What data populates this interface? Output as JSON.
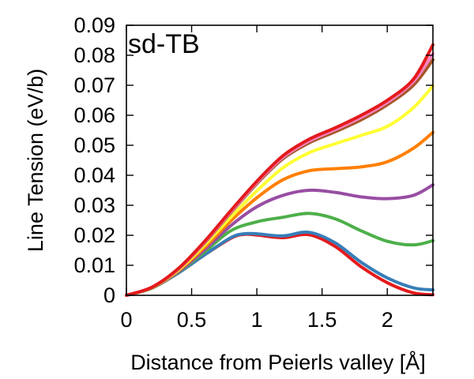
{
  "chart_data": {
    "type": "line",
    "title": "sd-TB",
    "xlabel": "Distance from Peierls valley [Å]",
    "ylabel": "Line Tension (eV/b)",
    "xlim": [
      0,
      2.35
    ],
    "ylim": [
      0,
      0.09
    ],
    "xticks": [
      0,
      0.5,
      1,
      1.5,
      2
    ],
    "xtick_labels": [
      "0",
      "0.5",
      "1",
      "1.5",
      "2"
    ],
    "yticks": [
      0,
      0.01,
      0.02,
      0.03,
      0.04,
      0.05,
      0.06,
      0.07,
      0.08,
      0.09
    ],
    "ytick_labels": [
      "0",
      "0.01",
      "0.02",
      "0.03",
      "0.04",
      "0.05",
      "0.06",
      "0.07",
      "0.08",
      "0.09"
    ],
    "grid": false,
    "series": [
      {
        "color": "#e41a1c",
        "x": [
          0,
          0.2,
          0.4,
          0.6,
          0.8,
          0.9,
          1.0,
          1.2,
          1.4,
          1.6,
          1.8,
          2.0,
          2.2,
          2.35
        ],
        "y": [
          0,
          0.0025,
          0.0075,
          0.0135,
          0.019,
          0.0203,
          0.0201,
          0.0192,
          0.0202,
          0.0163,
          0.0095,
          0.0042,
          0.0008,
          0.0002
        ]
      },
      {
        "color": "#377eb8",
        "x": [
          0,
          0.2,
          0.4,
          0.6,
          0.8,
          0.9,
          1.0,
          1.2,
          1.4,
          1.6,
          1.8,
          2.0,
          2.2,
          2.35
        ],
        "y": [
          0,
          0.0025,
          0.0075,
          0.0135,
          0.0192,
          0.0205,
          0.0205,
          0.0198,
          0.021,
          0.0175,
          0.011,
          0.0058,
          0.0025,
          0.0018
        ]
      },
      {
        "color": "#4daf4a",
        "x": [
          0,
          0.2,
          0.4,
          0.6,
          0.8,
          1.0,
          1.2,
          1.4,
          1.6,
          1.8,
          2.0,
          2.2,
          2.35
        ],
        "y": [
          0,
          0.0025,
          0.0078,
          0.0145,
          0.0215,
          0.0245,
          0.026,
          0.0273,
          0.0255,
          0.0215,
          0.018,
          0.0168,
          0.0182
        ]
      },
      {
        "color": "#984ea3",
        "x": [
          0,
          0.2,
          0.4,
          0.6,
          0.8,
          1.0,
          1.2,
          1.4,
          1.6,
          1.8,
          2.0,
          2.2,
          2.35
        ],
        "y": [
          0,
          0.0026,
          0.008,
          0.0152,
          0.0232,
          0.0295,
          0.0333,
          0.035,
          0.0343,
          0.0328,
          0.0322,
          0.0333,
          0.0368
        ]
      },
      {
        "color": "#ff7f00",
        "x": [
          0,
          0.2,
          0.4,
          0.6,
          0.8,
          1.0,
          1.2,
          1.4,
          1.6,
          1.8,
          2.0,
          2.2,
          2.35
        ],
        "y": [
          0,
          0.0026,
          0.0083,
          0.016,
          0.0248,
          0.0325,
          0.0385,
          0.0415,
          0.0422,
          0.0428,
          0.0445,
          0.049,
          0.0543
        ]
      },
      {
        "color": "#ffff33",
        "x": [
          0,
          0.2,
          0.4,
          0.6,
          0.8,
          1.0,
          1.2,
          1.4,
          1.6,
          1.8,
          2.0,
          2.2,
          2.35
        ],
        "y": [
          0,
          0.0027,
          0.0085,
          0.0168,
          0.026,
          0.0348,
          0.0425,
          0.0475,
          0.0505,
          0.0533,
          0.0563,
          0.0625,
          0.0698
        ]
      },
      {
        "color": "#a65628",
        "x": [
          0,
          0.2,
          0.4,
          0.6,
          0.8,
          1.0,
          1.2,
          1.4,
          1.6,
          1.8,
          2.0,
          2.2,
          2.35
        ],
        "y": [
          0,
          0.0027,
          0.0088,
          0.0175,
          0.0275,
          0.0372,
          0.0455,
          0.0508,
          0.0545,
          0.0585,
          0.0635,
          0.07,
          0.0785
        ]
      },
      {
        "color": "#f781bf",
        "x": [
          0,
          0.2,
          0.4,
          0.6,
          0.8,
          1.0,
          1.2,
          1.4,
          1.6,
          1.8,
          2.0,
          2.2,
          2.35
        ],
        "y": [
          0,
          0.0028,
          0.0089,
          0.0177,
          0.0278,
          0.0376,
          0.046,
          0.0514,
          0.0552,
          0.0593,
          0.0643,
          0.0712,
          0.0805
        ]
      },
      {
        "color": "#e41a1c",
        "x": [
          0,
          0.2,
          0.4,
          0.6,
          0.8,
          1.0,
          1.2,
          1.4,
          1.6,
          1.8,
          2.0,
          2.2,
          2.35
        ],
        "y": [
          0,
          0.0028,
          0.009,
          0.018,
          0.0282,
          0.038,
          0.0465,
          0.052,
          0.0558,
          0.06,
          0.065,
          0.072,
          0.0835
        ]
      }
    ]
  }
}
